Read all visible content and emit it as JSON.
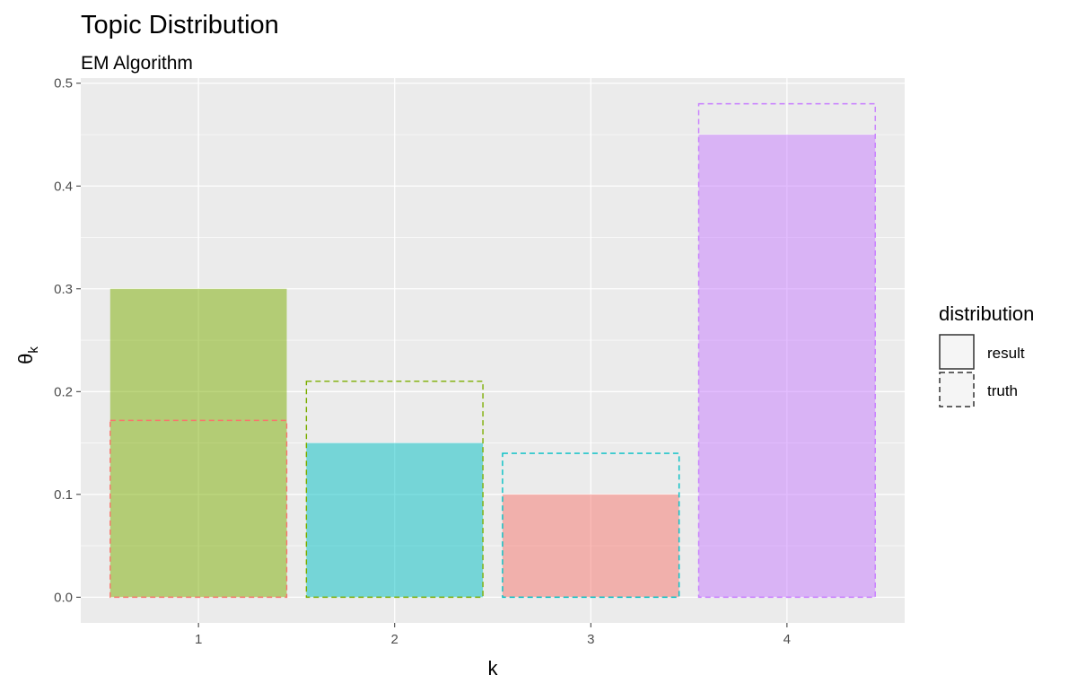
{
  "chart_data": {
    "type": "bar",
    "title": "Topic Distribution",
    "subtitle": "EM Algorithm",
    "xlabel": "k",
    "ylabel": "θ",
    "ylabel_subscript": "k",
    "categories": [
      "1",
      "2",
      "3",
      "4"
    ],
    "ylim": [
      -0.025,
      0.505
    ],
    "yticks": [
      0.0,
      0.1,
      0.2,
      0.3,
      0.4,
      0.5
    ],
    "ytick_labels": [
      "0.0",
      "0.1",
      "0.2",
      "0.3",
      "0.4",
      "0.5"
    ],
    "grid": true,
    "legend": {
      "title": "distribution",
      "position": "right",
      "entries": [
        {
          "label": "result",
          "style": "solid"
        },
        {
          "label": "truth",
          "style": "dashed"
        }
      ]
    },
    "series": [
      {
        "name": "result",
        "style": "filled",
        "values": [
          0.3,
          0.15,
          0.1,
          0.45
        ],
        "colors": [
          "#7CAE00",
          "#00BFC4",
          "#F8766D",
          "#C77CFF"
        ]
      },
      {
        "name": "truth",
        "style": "dashed-outline",
        "values": [
          0.172,
          0.21,
          0.14,
          0.48
        ],
        "colors": [
          "#F8766D",
          "#7CAE00",
          "#00BFC4",
          "#C77CFF"
        ]
      }
    ]
  }
}
